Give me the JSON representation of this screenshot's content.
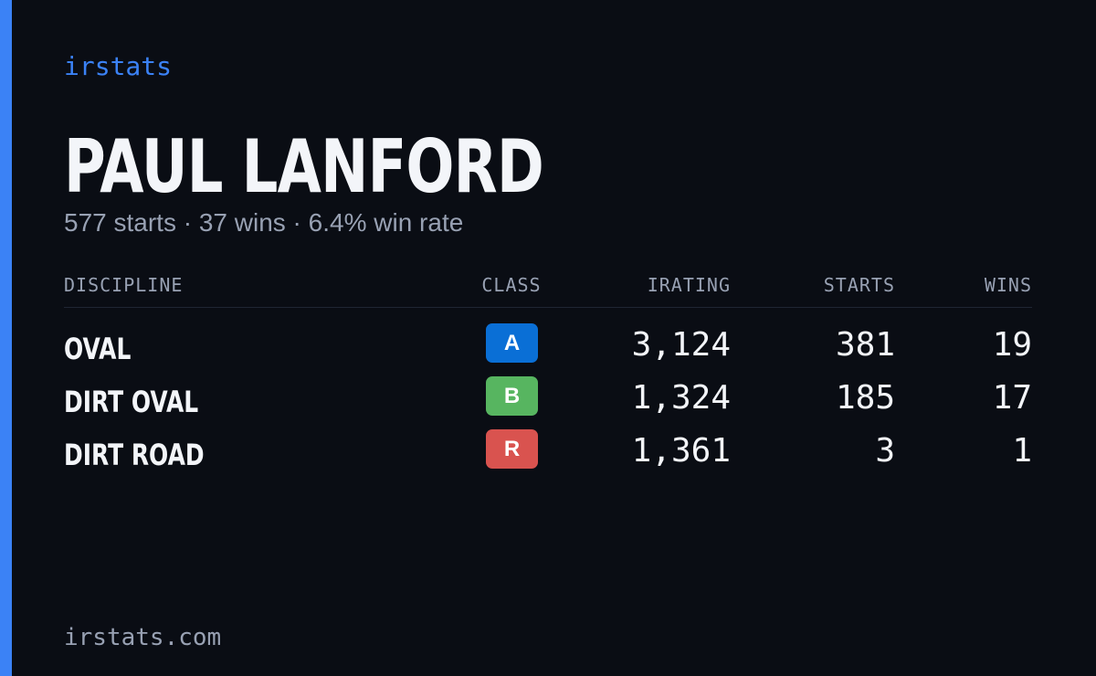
{
  "brand": "irstats",
  "player": {
    "name": "PAUL LANFORD",
    "summary": "577 starts · 37 wins · 6.4% win rate"
  },
  "table": {
    "headers": {
      "discipline": "DISCIPLINE",
      "class": "CLASS",
      "irating": "IRATING",
      "starts": "STARTS",
      "wins": "WINS"
    },
    "rows": [
      {
        "discipline": "OVAL",
        "class": "A",
        "class_color": "#0a6fd6",
        "irating": "3,124",
        "starts": "381",
        "wins": "19"
      },
      {
        "discipline": "DIRT OVAL",
        "class": "B",
        "class_color": "#57b560",
        "irating": "1,324",
        "starts": "185",
        "wins": "17"
      },
      {
        "discipline": "DIRT ROAD",
        "class": "R",
        "class_color": "#d9534f",
        "irating": "1,361",
        "starts": "3",
        "wins": "1"
      }
    ]
  },
  "footer": {
    "url": "irstats.com"
  },
  "colors": {
    "accent": "#3b82f6",
    "background": "#0a0d14",
    "text_primary": "#f3f5f9",
    "text_muted": "#98a1b3"
  }
}
